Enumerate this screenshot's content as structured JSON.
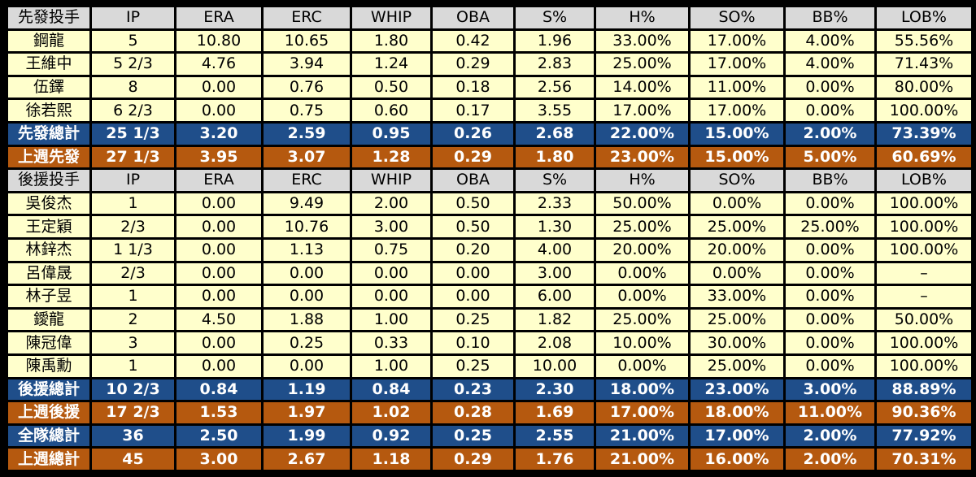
{
  "starters": {
    "header": [
      "先發投手",
      "IP",
      "ERA",
      "ERC",
      "WHIP",
      "OBA",
      "S%",
      "H%",
      "SO%",
      "BB%",
      "LOB%"
    ],
    "rows": [
      [
        "鋼龍",
        "5",
        "10.80",
        "10.65",
        "1.80",
        "0.42",
        "1.96",
        "33.00%",
        "17.00%",
        "4.00%",
        "55.56%"
      ],
      [
        "王維中",
        "5 2/3",
        "4.76",
        "3.94",
        "1.24",
        "0.29",
        "2.83",
        "25.00%",
        "17.00%",
        "4.00%",
        "71.43%"
      ],
      [
        "伍鐸",
        "8",
        "0.00",
        "0.76",
        "0.50",
        "0.18",
        "2.56",
        "14.00%",
        "11.00%",
        "0.00%",
        "80.00%"
      ],
      [
        "徐若熙",
        "6 2/3",
        "0.00",
        "0.75",
        "0.60",
        "0.17",
        "3.55",
        "17.00%",
        "17.00%",
        "0.00%",
        "100.00%"
      ]
    ],
    "total": [
      "先發總計",
      "25 1/3",
      "3.20",
      "2.59",
      "0.95",
      "0.26",
      "2.68",
      "22.00%",
      "15.00%",
      "2.00%",
      "73.39%"
    ],
    "last_week": [
      "上週先發",
      "27 1/3",
      "3.95",
      "3.07",
      "1.28",
      "0.29",
      "1.80",
      "23.00%",
      "15.00%",
      "5.00%",
      "60.69%"
    ]
  },
  "relievers": {
    "header": [
      "後援投手",
      "IP",
      "ERA",
      "ERC",
      "WHIP",
      "OBA",
      "S%",
      "H%",
      "SO%",
      "BB%",
      "LOB%"
    ],
    "rows": [
      [
        "吳俊杰",
        "1",
        "0.00",
        "9.49",
        "2.00",
        "0.50",
        "2.33",
        "50.00%",
        "0.00%",
        "0.00%",
        "100.00%"
      ],
      [
        "王定穎",
        "2/3",
        "0.00",
        "10.76",
        "3.00",
        "0.50",
        "1.30",
        "25.00%",
        "25.00%",
        "25.00%",
        "100.00%"
      ],
      [
        "林鋅杰",
        "1 1/3",
        "0.00",
        "1.13",
        "0.75",
        "0.20",
        "4.00",
        "20.00%",
        "20.00%",
        "0.00%",
        "100.00%"
      ],
      [
        "呂偉晟",
        "2/3",
        "0.00",
        "0.00",
        "0.00",
        "0.00",
        "3.00",
        "0.00%",
        "0.00%",
        "0.00%",
        "–"
      ],
      [
        "林子昱",
        "1",
        "0.00",
        "0.00",
        "0.00",
        "0.00",
        "6.00",
        "0.00%",
        "33.00%",
        "0.00%",
        "–"
      ],
      [
        "鑀龍",
        "2",
        "4.50",
        "1.88",
        "1.00",
        "0.25",
        "1.82",
        "25.00%",
        "25.00%",
        "0.00%",
        "50.00%"
      ],
      [
        "陳冠偉",
        "3",
        "0.00",
        "0.25",
        "0.33",
        "0.10",
        "2.08",
        "10.00%",
        "30.00%",
        "0.00%",
        "100.00%"
      ],
      [
        "陳禹勳",
        "1",
        "0.00",
        "0.00",
        "1.00",
        "0.25",
        "10.00",
        "0.00%",
        "25.00%",
        "0.00%",
        "100.00%"
      ]
    ],
    "total": [
      "後援總計",
      "10 2/3",
      "0.84",
      "1.19",
      "0.84",
      "0.23",
      "2.30",
      "18.00%",
      "23.00%",
      "3.00%",
      "88.89%"
    ],
    "last_week": [
      "上週後援",
      "17 2/3",
      "1.53",
      "1.97",
      "1.02",
      "0.28",
      "1.69",
      "17.00%",
      "18.00%",
      "11.00%",
      "90.36%"
    ]
  },
  "team": {
    "total": [
      "全隊總計",
      "36",
      "2.50",
      "1.99",
      "0.92",
      "0.25",
      "2.55",
      "21.00%",
      "17.00%",
      "2.00%",
      "77.92%"
    ],
    "last_week": [
      "上週總計",
      "45",
      "3.00",
      "2.67",
      "1.18",
      "0.29",
      "1.76",
      "21.00%",
      "16.00%",
      "2.00%",
      "70.31%"
    ]
  },
  "colors": {
    "header_bg": "#d9d9d9",
    "row_bg": "#ffffcc",
    "total_bg": "#1f4e8a",
    "last_week_bg": "#b5590f",
    "background": "#000000"
  }
}
